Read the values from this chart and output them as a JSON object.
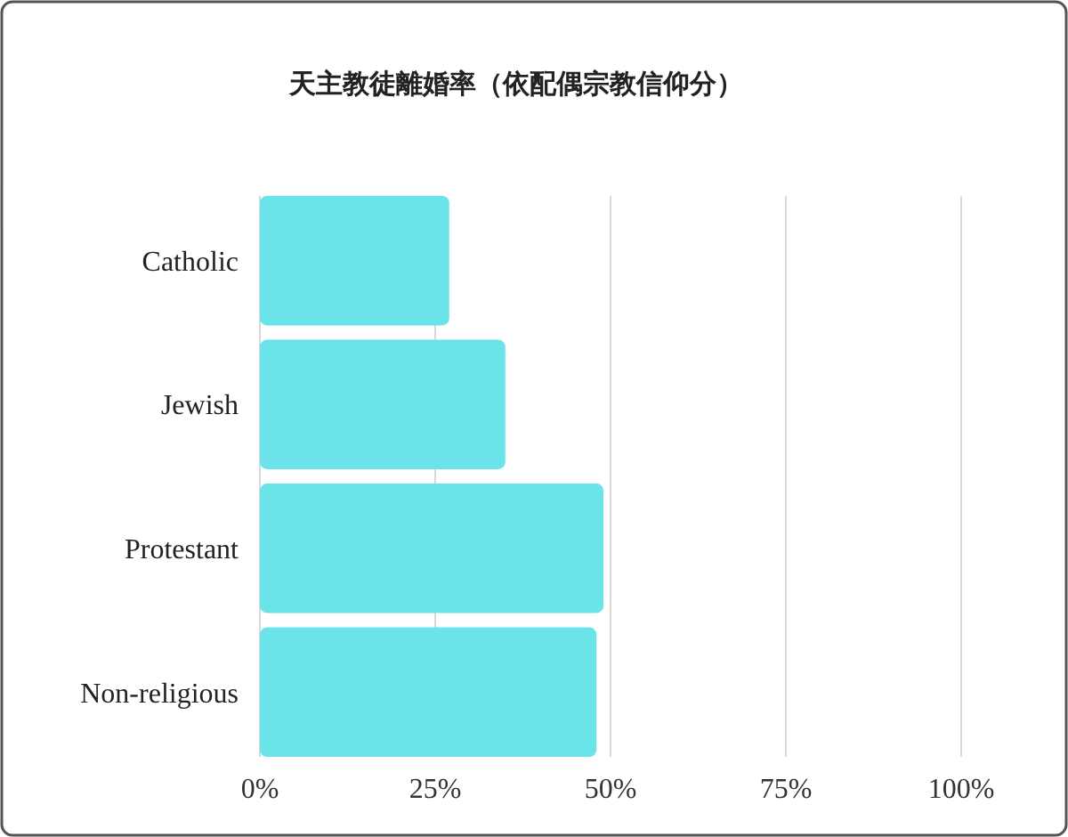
{
  "chart_data": {
    "type": "bar",
    "orientation": "horizontal",
    "title": "天主教徒離婚率（依配偶宗教信仰分）",
    "categories": [
      "Catholic",
      "Jewish",
      "Protestant",
      "Non-religious"
    ],
    "values": [
      27,
      35,
      49,
      48
    ],
    "color": "#6ae4e9",
    "xlim": [
      0,
      100
    ],
    "xticks": [
      {
        "value": 0,
        "label": "0%"
      },
      {
        "value": 25,
        "label": "25%"
      },
      {
        "value": 50,
        "label": "50%"
      },
      {
        "value": 75,
        "label": "75%"
      },
      {
        "value": 100,
        "label": "100%"
      }
    ],
    "grid": "x"
  }
}
